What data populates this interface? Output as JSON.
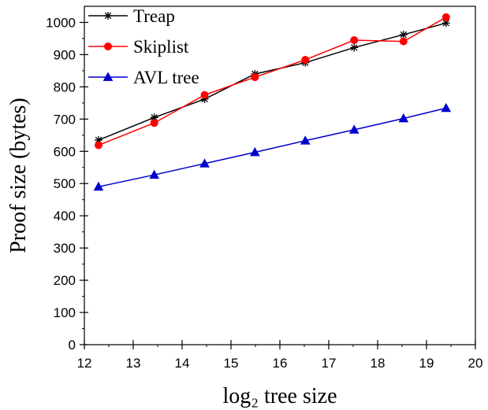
{
  "chart_data": {
    "type": "line",
    "title": "",
    "xlabel": "log₂ tree  size",
    "ylabel": "Proof  size (bytes)",
    "xlim": [
      12,
      20
    ],
    "ylim": [
      0,
      1050
    ],
    "xticks": [
      12,
      13,
      14,
      15,
      16,
      17,
      18,
      19,
      20
    ],
    "yticks": [
      0,
      100,
      200,
      300,
      400,
      500,
      600,
      700,
      800,
      900,
      1000
    ],
    "grid": false,
    "legend_position": "top-left",
    "x": [
      12.29,
      13.43,
      14.46,
      15.49,
      16.52,
      17.52,
      18.53,
      19.4
    ],
    "series": [
      {
        "name": "Treap",
        "color": "#000000",
        "marker": "asterisk",
        "values": [
          635,
          705,
          762,
          840,
          875,
          922,
          962,
          998
        ]
      },
      {
        "name": "Skiplist",
        "color": "#ff0000",
        "marker": "circle",
        "values": [
          619,
          688,
          775,
          830,
          884,
          945,
          941,
          1016
        ]
      },
      {
        "name": "AVL tree",
        "color": "#0000cc",
        "marker": "triangle",
        "values": [
          490,
          527,
          562,
          597,
          633,
          667,
          702,
          734
        ]
      }
    ]
  }
}
